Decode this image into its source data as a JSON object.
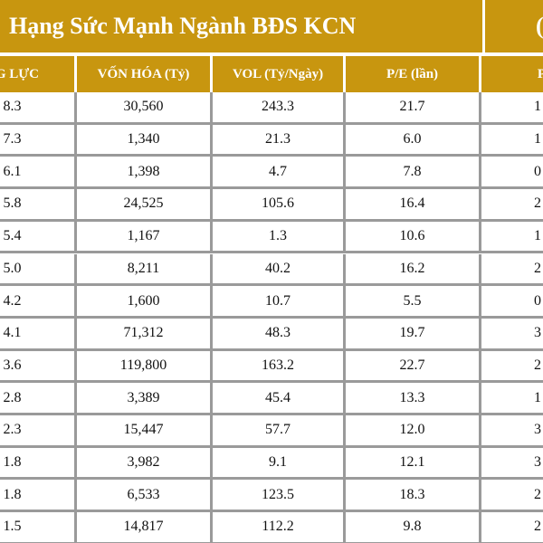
{
  "header": {
    "title": "Hạng Sức Mạnh Ngành BĐS KCN",
    "title_right": "("
  },
  "table": {
    "columns": [
      "NG LỰC",
      "VỐN HÓA (Tỷ)",
      "VOL (Tỷ/Ngày)",
      "P/E (lần)",
      "P/B"
    ],
    "rows": [
      [
        "8.3",
        "30,560",
        "243.3",
        "21.7",
        "1"
      ],
      [
        "7.3",
        "1,340",
        "21.3",
        "6.0",
        "1"
      ],
      [
        "6.1",
        "1,398",
        "4.7",
        "7.8",
        "0"
      ],
      [
        "5.8",
        "24,525",
        "105.6",
        "16.4",
        "2"
      ],
      [
        "5.4",
        "1,167",
        "1.3",
        "10.6",
        "1"
      ],
      [
        "5.0",
        "8,211",
        "40.2",
        "16.2",
        "2"
      ],
      [
        "4.2",
        "1,600",
        "10.7",
        "5.5",
        "0"
      ],
      [
        "4.1",
        "71,312",
        "48.3",
        "19.7",
        "3"
      ],
      [
        "3.6",
        "119,800",
        "163.2",
        "22.7",
        "2"
      ],
      [
        "2.8",
        "3,389",
        "45.4",
        "13.3",
        "1"
      ],
      [
        "2.3",
        "15,447",
        "57.7",
        "12.0",
        "3"
      ],
      [
        "1.8",
        "3,982",
        "9.1",
        "12.1",
        "3"
      ],
      [
        "1.8",
        "6,533",
        "123.5",
        "18.3",
        "2"
      ],
      [
        "1.5",
        "14,817",
        "112.2",
        "9.8",
        "2"
      ]
    ]
  }
}
